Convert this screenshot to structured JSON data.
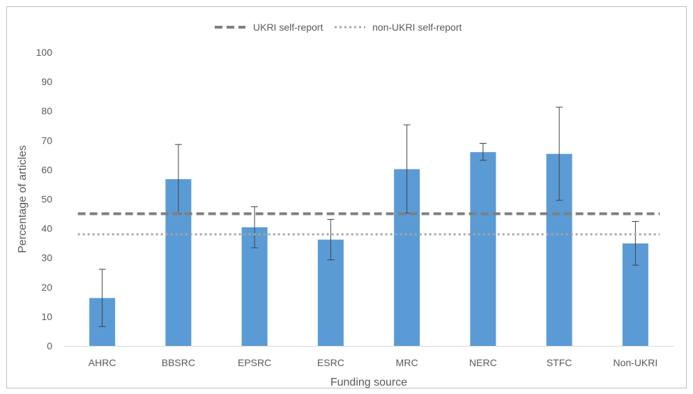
{
  "chart_data": {
    "type": "bar",
    "title": "",
    "xlabel": "Funding source",
    "ylabel": "Percentage of articles",
    "ylim": [
      0,
      100
    ],
    "yticks": [
      0,
      10,
      20,
      30,
      40,
      50,
      60,
      70,
      80,
      90,
      100
    ],
    "categories": [
      "AHRC",
      "BBSRC",
      "EPSRC",
      "ESRC",
      "MRC",
      "NERC",
      "STFC",
      "Non-UKRI"
    ],
    "series": [
      {
        "values": [
          16.3,
          56.8,
          40.4,
          36.2,
          60.2,
          66.0,
          65.4,
          34.9
        ],
        "error_low": [
          6.6,
          45.0,
          33.4,
          29.3,
          45.2,
          63.2,
          49.6,
          27.5
        ],
        "error_high": [
          26.1,
          68.6,
          47.4,
          43.1,
          75.3,
          69.0,
          81.3,
          42.4
        ],
        "color": "#5b9bd5"
      }
    ],
    "reference_lines": [
      {
        "name": "UKRI self-report",
        "value": 45,
        "style": "dashed",
        "color": "#7f7f7f"
      },
      {
        "name": "non-UKRI self-report",
        "value": 38,
        "style": "dotted",
        "color": "#a6a6a6"
      }
    ],
    "legend": "top-center",
    "grid": false
  }
}
